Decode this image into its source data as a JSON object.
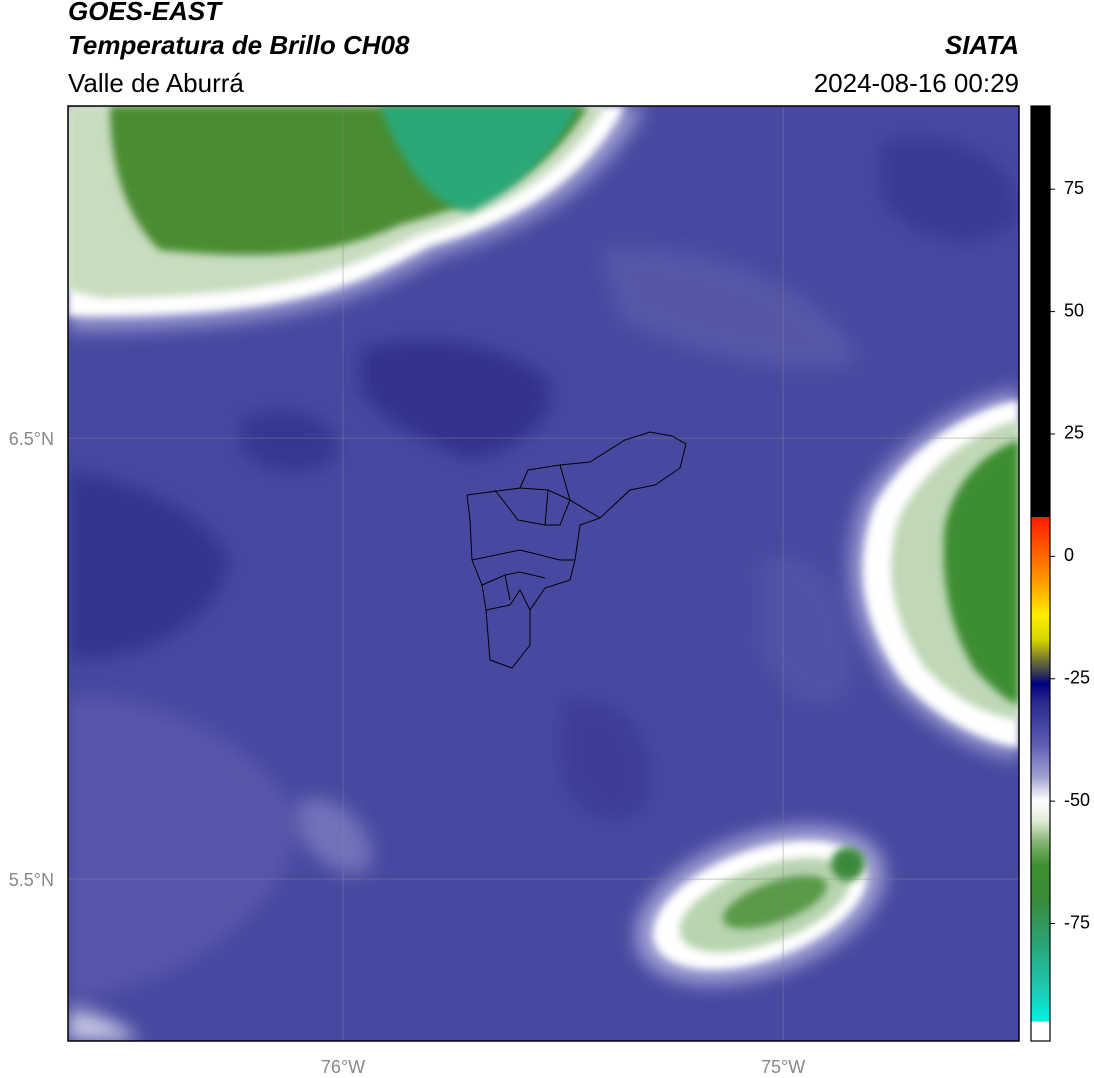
{
  "header": {
    "title": "GOES-EAST",
    "subtitle": "Temperatura de Brillo CH08",
    "source": "SIATA",
    "region": "Valle de Aburrá",
    "datetime": "2024-08-16 00:29"
  },
  "map": {
    "xlim": [
      -76.625,
      -74.464
    ],
    "ylim": [
      5.133,
      7.253
    ],
    "xticks": [
      {
        "value": -76,
        "label": "76°W"
      },
      {
        "value": -75,
        "label": "75°W"
      }
    ],
    "yticks": [
      {
        "value": 6.5,
        "label": "6.5°N"
      },
      {
        "value": 5.5,
        "label": "5.5°N"
      }
    ],
    "grid": true
  },
  "colorbar": {
    "lim": [
      -99,
      92
    ],
    "ticks": [
      75,
      50,
      25,
      0,
      -25,
      -50,
      -75
    ],
    "stops": [
      {
        "value": 92,
        "color": "#000000"
      },
      {
        "value": 8,
        "color": "#000000"
      },
      {
        "value": 8,
        "color": "#ff1a00"
      },
      {
        "value": 2,
        "color": "#ff5500"
      },
      {
        "value": -5,
        "color": "#ff9900"
      },
      {
        "value": -12,
        "color": "#ffee00"
      },
      {
        "value": -17,
        "color": "#d6d600"
      },
      {
        "value": -21,
        "color": "#777733"
      },
      {
        "value": -24,
        "color": "#333355"
      },
      {
        "value": -26,
        "color": "#000080"
      },
      {
        "value": -30,
        "color": "#2a2a90"
      },
      {
        "value": -38,
        "color": "#5a5ab0"
      },
      {
        "value": -45,
        "color": "#a0a0d0"
      },
      {
        "value": -50,
        "color": "#ffffff"
      },
      {
        "value": -54,
        "color": "#e0ecd8"
      },
      {
        "value": -58,
        "color": "#8ab878"
      },
      {
        "value": -63,
        "color": "#3e9030"
      },
      {
        "value": -70,
        "color": "#3a8a3a"
      },
      {
        "value": -78,
        "color": "#2aa070"
      },
      {
        "value": -88,
        "color": "#20c8b0"
      },
      {
        "value": -95,
        "color": "#00f0e0"
      },
      {
        "value": -95,
        "color": "#ffffff"
      },
      {
        "value": -99,
        "color": "#ffffff"
      }
    ]
  }
}
